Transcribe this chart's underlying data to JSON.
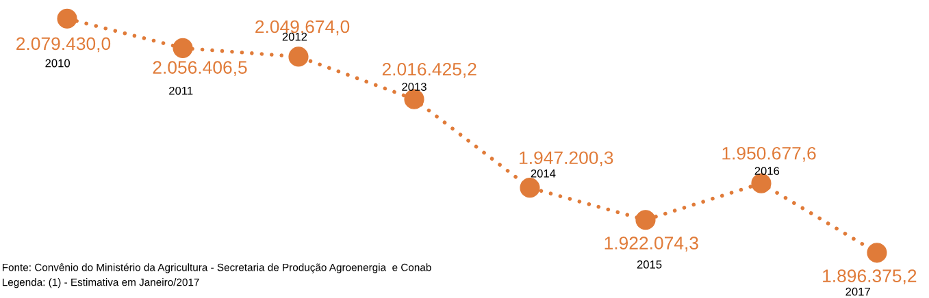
{
  "chart_data": {
    "type": "line",
    "categories": [
      null,
      null,
      null,
      null,
      null,
      null,
      null,
      null
    ],
    "series": [
      {
        "color": "#e07b39",
        "values": [
          2079430.0,
          2056406.5,
          2049674.0,
          2016425.2,
          1947200.3,
          1922074.3,
          1950677.6,
          1896375.2
        ],
        "value_labels": [
          "2.079.430,0",
          "2.056.406,5",
          "2.049.674,0",
          "2.016.425,2",
          "1.947.200,3",
          "1.922.074,3",
          "1.950.677,6",
          "1.896.375,2"
        ]
      }
    ],
    "ylim": [
      1861000,
      2094000
    ],
    "marker": "circle",
    "line_style": "dotted",
    "annotations": [
      "2010",
      "2011",
      "2012",
      "2013",
      "2014",
      "2015",
      "2016",
      "2017",
      "Fonte: Convênio do Ministério da Agricultura - Secretaria de Produção Agroenergia  e Conab",
      "Legenda: (1) - Estimativa em Janeiro/2017"
    ]
  }
}
